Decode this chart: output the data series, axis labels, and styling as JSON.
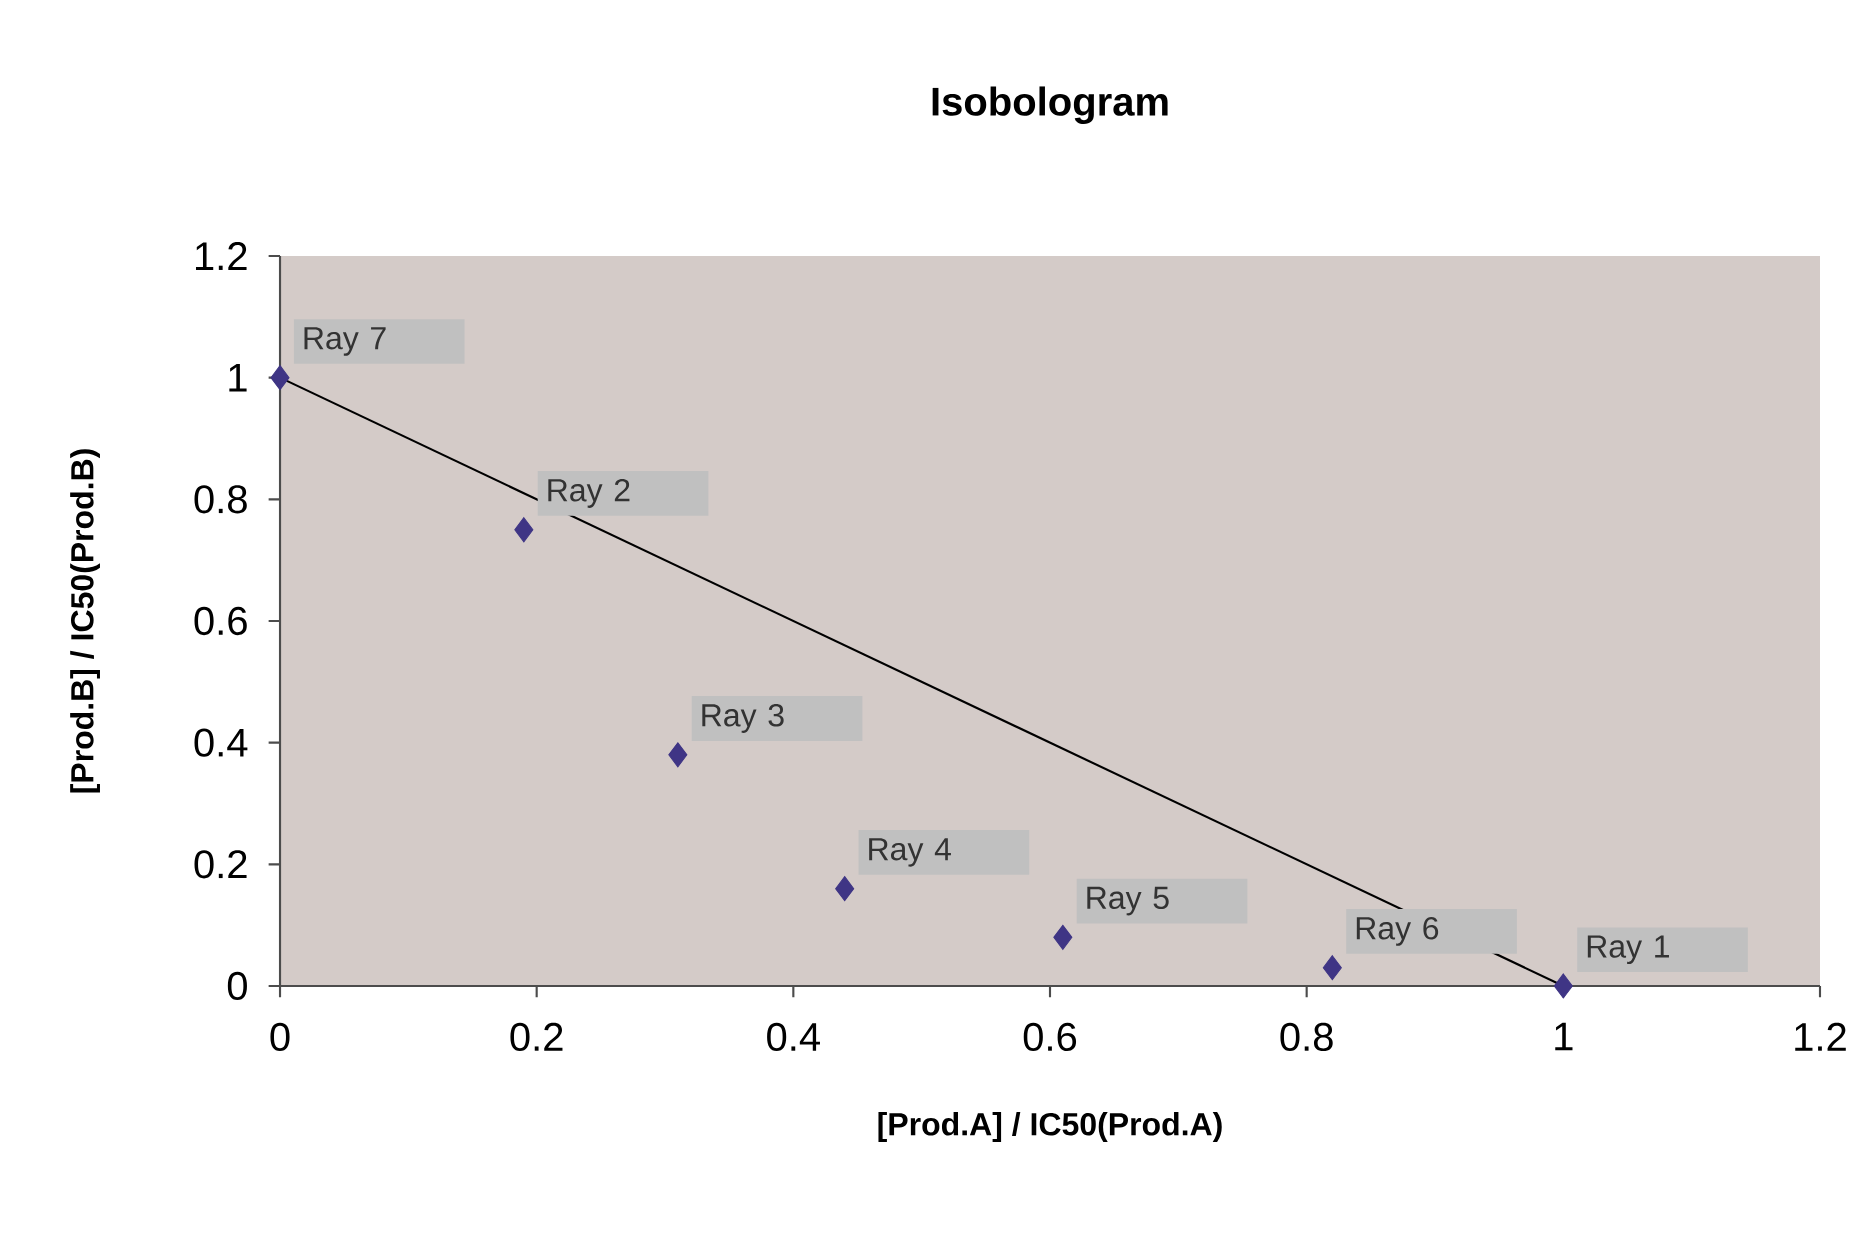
{
  "chart_data": {
    "type": "scatter",
    "title": "Isobologram",
    "xlabel": "[Prod.A] / IC50(Prod.A)",
    "ylabel": "[Prod.B] / IC50(Prod.B)",
    "series": [
      {
        "color": "#3f3585",
        "x": [
          1,
          0.19,
          0.31,
          0.44,
          0.61,
          0.82,
          0
        ],
        "values": [
          0,
          0.75,
          0.38,
          0.16,
          0.08,
          0.03,
          1
        ]
      },
      {
        "type": "line",
        "marker": "none",
        "color": "#000000",
        "x": [
          0,
          1
        ],
        "values": [
          1,
          0
        ]
      }
    ],
    "marker": "diamond",
    "xlim": [
      0,
      1.2
    ],
    "ylim": [
      0,
      1.2
    ],
    "xticks": [
      0,
      0.2,
      0.4,
      0.6,
      0.8,
      1,
      1.2
    ],
    "yticks": [
      0,
      0.2,
      0.4,
      0.6,
      0.8,
      1,
      1.2
    ],
    "annotations": [
      {
        "text": "Ray 1",
        "x": 1,
        "y": 0
      },
      {
        "text": "Ray 2",
        "x": 0.19,
        "y": 0.75
      },
      {
        "text": "Ray 3",
        "x": 0.31,
        "y": 0.38
      },
      {
        "text": "Ray 4",
        "x": 0.44,
        "y": 0.16
      },
      {
        "text": "Ray 5",
        "x": 0.61,
        "y": 0.08
      },
      {
        "text": "Ray 6",
        "x": 0.82,
        "y": 0.03
      },
      {
        "text": "Ray 7",
        "x": 0,
        "y": 1
      }
    ]
  }
}
